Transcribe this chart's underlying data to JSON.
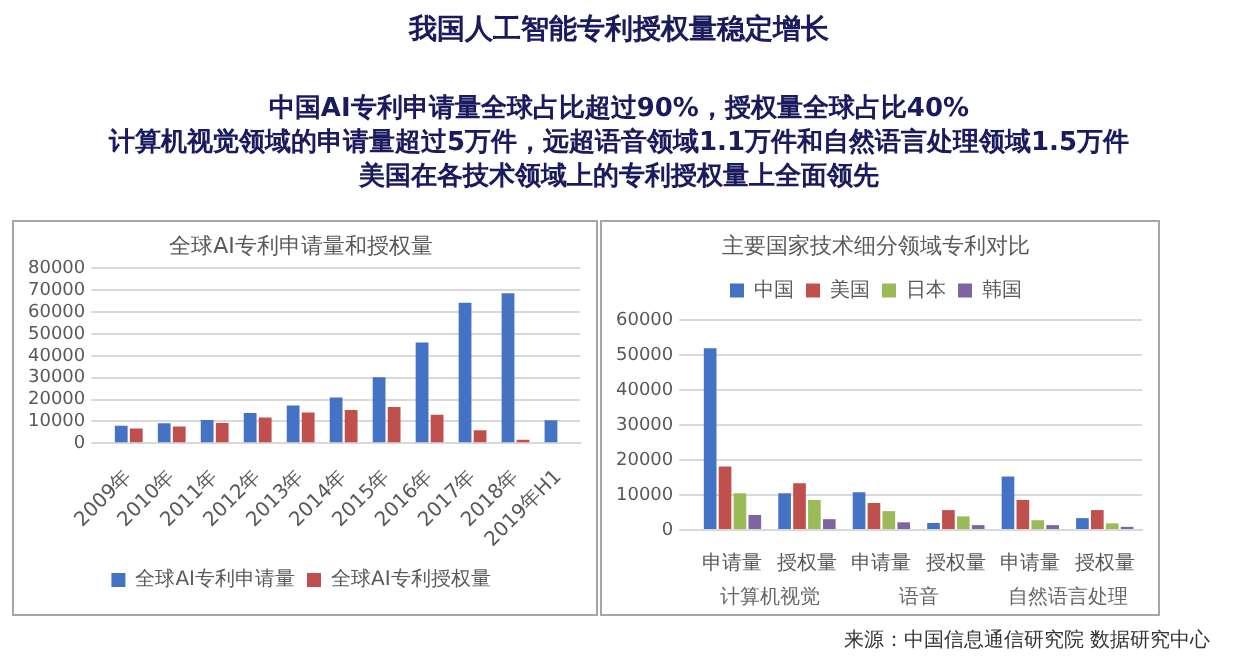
{
  "chart_data": [
    {
      "type": "other",
      "title": "我国人工智能专利授权量稳定增长",
      "annotations": [
        "中国AI专利申请量全球占比超过90%，授权量全球占比40%",
        "计算机视觉领域的申请量超过5万件，远超语音领域1.1万件和自然语言处理领域1.5万件",
        "美国在各技术领域上的专利授权量上全面领先",
        "来源：中国信息通信研究院 数据研究中心"
      ]
    },
    {
      "type": "bar",
      "title": "全球AI专利申请量和授权量",
      "categories": [
        "2009年",
        "2010年",
        "2011年",
        "2012年",
        "2013年",
        "2014年",
        "2015年",
        "2016年",
        "2017年",
        "2018年",
        "2019年H1"
      ],
      "series": [
        {
          "name": "全球AI专利申请量",
          "color": "#4472c4",
          "values": [
            8000,
            9100,
            10700,
            13900,
            17300,
            20900,
            30200,
            46100,
            64300,
            68600,
            10500
          ]
        },
        {
          "name": "全球AI专利授权量",
          "color": "#c0504d",
          "values": [
            6800,
            7700,
            9300,
            11800,
            14100,
            15200,
            16600,
            13000,
            5900,
            1600,
            null
          ]
        }
      ],
      "ylim": [
        0,
        80000
      ],
      "yticks": [
        0,
        10000,
        20000,
        30000,
        40000,
        50000,
        60000,
        70000,
        80000
      ],
      "grid": "y",
      "legend": "bottom"
    },
    {
      "type": "bar",
      "title": "主要国家技术细分领域专利对比",
      "categories": [
        "申请量",
        "授权量",
        "申请量",
        "授权量",
        "申请量",
        "授权量"
      ],
      "series": [
        {
          "name": "中国",
          "color": "#4472c4",
          "values": [
            52000,
            10500,
            10800,
            2000,
            15300,
            3400
          ]
        },
        {
          "name": "美国",
          "color": "#c0504d",
          "values": [
            18200,
            13400,
            7700,
            5700,
            8600,
            5700
          ]
        },
        {
          "name": "日本",
          "color": "#9bbb59",
          "values": [
            10500,
            8600,
            5400,
            3900,
            2800,
            1900
          ]
        },
        {
          "name": "韩国",
          "color": "#8064a2",
          "values": [
            4300,
            3100,
            2200,
            1400,
            1400,
            900
          ]
        }
      ],
      "annotations": [
        "计算机视觉",
        "语音",
        "自然语言处理"
      ],
      "ylim": [
        0,
        60000
      ],
      "yticks": [
        0,
        10000,
        20000,
        30000,
        40000,
        50000,
        60000
      ],
      "grid": "y",
      "legend": "top"
    }
  ]
}
